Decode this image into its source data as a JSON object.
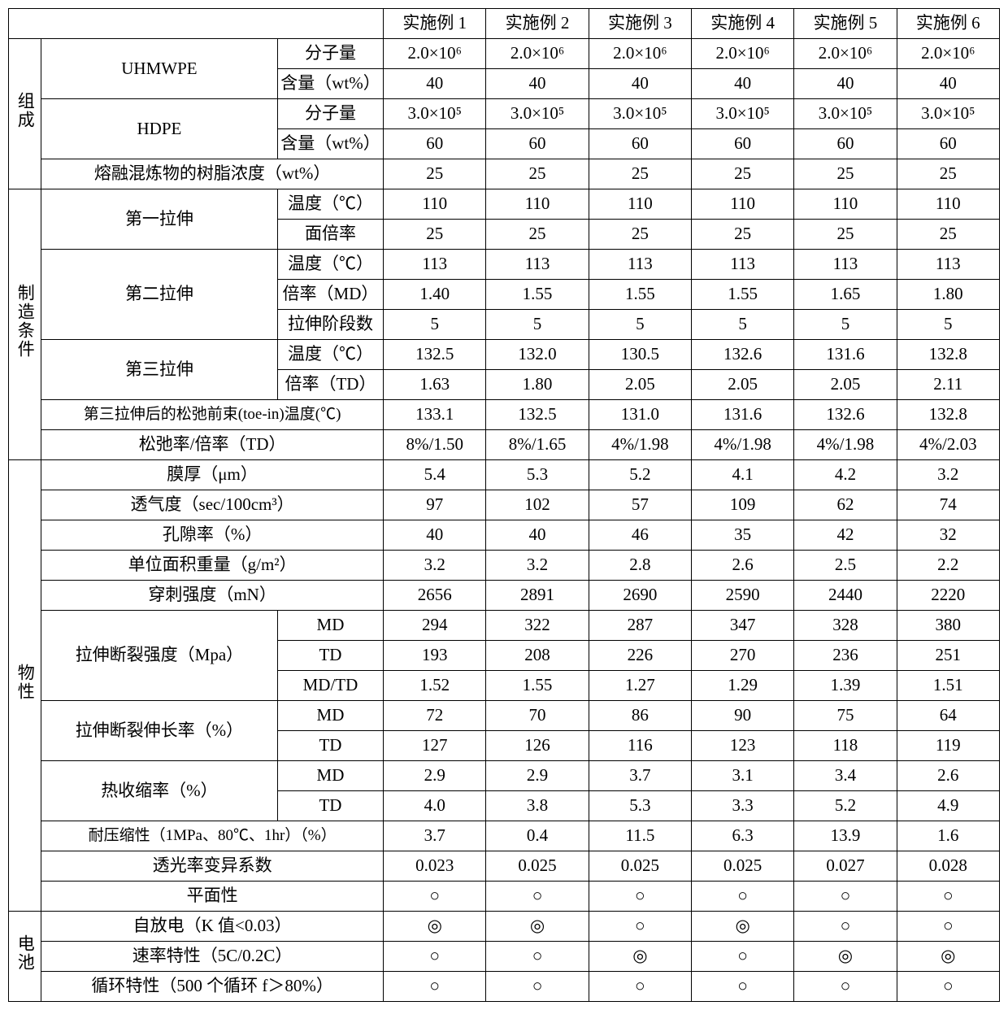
{
  "headers": {
    "ex1": "实施例 1",
    "ex2": "实施例 2",
    "ex3": "实施例 3",
    "ex4": "实施例 4",
    "ex5": "实施例 5",
    "ex6": "实施例 6"
  },
  "sections": {
    "composition": "组成",
    "manufacturing": "制造条件",
    "properties": "物性",
    "battery": "电池"
  },
  "labels": {
    "uhmwpe": "UHMWPE",
    "hdpe": "HDPE",
    "mw": "分子量",
    "content": "含量（wt%）",
    "resin_conc": "熔融混炼物的树脂浓度（wt%）",
    "stretch1": "第一拉伸",
    "stretch2": "第二拉伸",
    "stretch3": "第三拉伸",
    "temp": "温度（℃）",
    "area_ratio": "面倍率",
    "ratio_md": "倍率（MD）",
    "stages": "拉伸阶段数",
    "ratio_td": "倍率（TD）",
    "toein": "第三拉伸后的松弛前束(toe-in)温度(℃)",
    "relax_ratio": "松弛率/倍率（TD）",
    "thickness": "膜厚（μm）",
    "air": "透气度（sec/100cm³）",
    "porosity": "孔隙率（%）",
    "areal_wt": "单位面积重量（g/m²）",
    "puncture": "穿刺强度（mN）",
    "tensile_str": "拉伸断裂强度（Mpa）",
    "elongation": "拉伸断裂伸长率（%）",
    "shrink": "热收缩率（%）",
    "md": "MD",
    "td": "TD",
    "mdtd": "MD/TD",
    "compress": "耐压缩性（1MPa、80℃、1hr）（%）",
    "cv": "透光率变异系数",
    "flatness": "平面性",
    "selfdis": "自放电（K 值<0.03）",
    "rate": "速率特性（5C/0.2C）",
    "cycle": "循环特性（500 个循环 f＞80%）"
  },
  "rows": {
    "uhmwpe_mw": [
      "2.0×10⁶",
      "2.0×10⁶",
      "2.0×10⁶",
      "2.0×10⁶",
      "2.0×10⁶",
      "2.0×10⁶"
    ],
    "uhmwpe_ct": [
      "40",
      "40",
      "40",
      "40",
      "40",
      "40"
    ],
    "hdpe_mw": [
      "3.0×10⁵",
      "3.0×10⁵",
      "3.0×10⁵",
      "3.0×10⁵",
      "3.0×10⁵",
      "3.0×10⁵"
    ],
    "hdpe_ct": [
      "60",
      "60",
      "60",
      "60",
      "60",
      "60"
    ],
    "resin": [
      "25",
      "25",
      "25",
      "25",
      "25",
      "25"
    ],
    "s1_temp": [
      "110",
      "110",
      "110",
      "110",
      "110",
      "110"
    ],
    "s1_area": [
      "25",
      "25",
      "25",
      "25",
      "25",
      "25"
    ],
    "s2_temp": [
      "113",
      "113",
      "113",
      "113",
      "113",
      "113"
    ],
    "s2_md": [
      "1.40",
      "1.55",
      "1.55",
      "1.55",
      "1.65",
      "1.80"
    ],
    "s2_stages": [
      "5",
      "5",
      "5",
      "5",
      "5",
      "5"
    ],
    "s3_temp": [
      "132.5",
      "132.0",
      "130.5",
      "132.6",
      "131.6",
      "132.8"
    ],
    "s3_td": [
      "1.63",
      "1.80",
      "2.05",
      "2.05",
      "2.05",
      "2.11"
    ],
    "toein": [
      "133.1",
      "132.5",
      "131.0",
      "131.6",
      "132.6",
      "132.8"
    ],
    "relax": [
      "8%/1.50",
      "8%/1.65",
      "4%/1.98",
      "4%/1.98",
      "4%/1.98",
      "4%/2.03"
    ],
    "thick": [
      "5.4",
      "5.3",
      "5.2",
      "4.1",
      "4.2",
      "3.2"
    ],
    "air": [
      "97",
      "102",
      "57",
      "109",
      "62",
      "74"
    ],
    "poros": [
      "40",
      "40",
      "46",
      "35",
      "42",
      "32"
    ],
    "awt": [
      "3.2",
      "3.2",
      "2.8",
      "2.6",
      "2.5",
      "2.2"
    ],
    "punct": [
      "2656",
      "2891",
      "2690",
      "2590",
      "2440",
      "2220"
    ],
    "ts_md": [
      "294",
      "322",
      "287",
      "347",
      "328",
      "380"
    ],
    "ts_td": [
      "193",
      "208",
      "226",
      "270",
      "236",
      "251"
    ],
    "ts_mdtd": [
      "1.52",
      "1.55",
      "1.27",
      "1.29",
      "1.39",
      "1.51"
    ],
    "el_md": [
      "72",
      "70",
      "86",
      "90",
      "75",
      "64"
    ],
    "el_td": [
      "127",
      "126",
      "116",
      "123",
      "118",
      "119"
    ],
    "sh_md": [
      "2.9",
      "2.9",
      "3.7",
      "3.1",
      "3.4",
      "2.6"
    ],
    "sh_td": [
      "4.0",
      "3.8",
      "5.3",
      "3.3",
      "5.2",
      "4.9"
    ],
    "compr": [
      "3.7",
      "0.4",
      "11.5",
      "6.3",
      "13.9",
      "1.6"
    ],
    "cv": [
      "0.023",
      "0.025",
      "0.025",
      "0.025",
      "0.027",
      "0.028"
    ],
    "flat": [
      "○",
      "○",
      "○",
      "○",
      "○",
      "○"
    ],
    "selfdis": [
      "◎",
      "◎",
      "○",
      "◎",
      "○",
      "○"
    ],
    "rate": [
      "○",
      "○",
      "◎",
      "○",
      "◎",
      "◎"
    ],
    "cycle": [
      "○",
      "○",
      "○",
      "○",
      "○",
      "○"
    ]
  }
}
